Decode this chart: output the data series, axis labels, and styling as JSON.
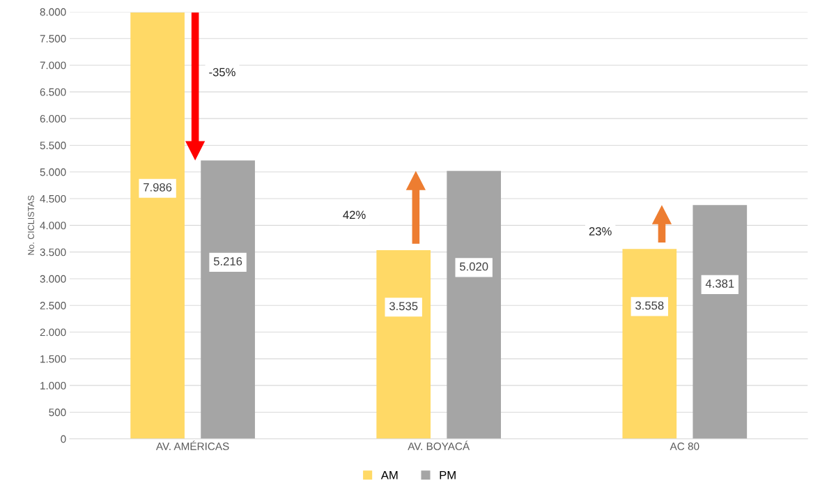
{
  "chart_data": {
    "type": "bar",
    "ylabel": "No. CICLISTAS",
    "categories": [
      "AV. AMÉRICAS",
      "AV. BOYACÁ",
      "AC 80"
    ],
    "series": [
      {
        "name": "AM",
        "color": "#ffd966",
        "values": [
          7986,
          3535,
          3558
        ],
        "value_labels": [
          "7.986",
          "3.535",
          "3.558"
        ]
      },
      {
        "name": "PM",
        "color": "#a5a5a5",
        "values": [
          5216,
          5020,
          4381
        ],
        "value_labels": [
          "5.216",
          "5.020",
          "4.381"
        ]
      }
    ],
    "ylim": [
      0,
      8000
    ],
    "yticks": [
      0,
      500,
      {
        "value": 1000,
        "label": "1.000"
      },
      {
        "value": 1500,
        "label": "1.500"
      },
      {
        "value": 2000,
        "label": "2.000"
      },
      {
        "value": 2500,
        "label": "2.500"
      },
      {
        "value": 3000,
        "label": "3.000"
      },
      {
        "value": 3500,
        "label": "3.500"
      },
      {
        "value": 4000,
        "label": "4.000"
      },
      {
        "value": 4500,
        "label": "4.500"
      },
      {
        "value": 5000,
        "label": "5.000"
      },
      {
        "value": 5500,
        "label": "5.500"
      },
      {
        "value": 6000,
        "label": "6.000"
      },
      {
        "value": 6500,
        "label": "6.500"
      },
      {
        "value": 7000,
        "label": "7.000"
      },
      {
        "value": 7500,
        "label": "7.500"
      },
      {
        "value": 8000,
        "label": "8.000"
      }
    ],
    "annotations": [
      "-35%",
      "42%",
      "23%"
    ],
    "grid": "y",
    "legend": "bottom"
  }
}
